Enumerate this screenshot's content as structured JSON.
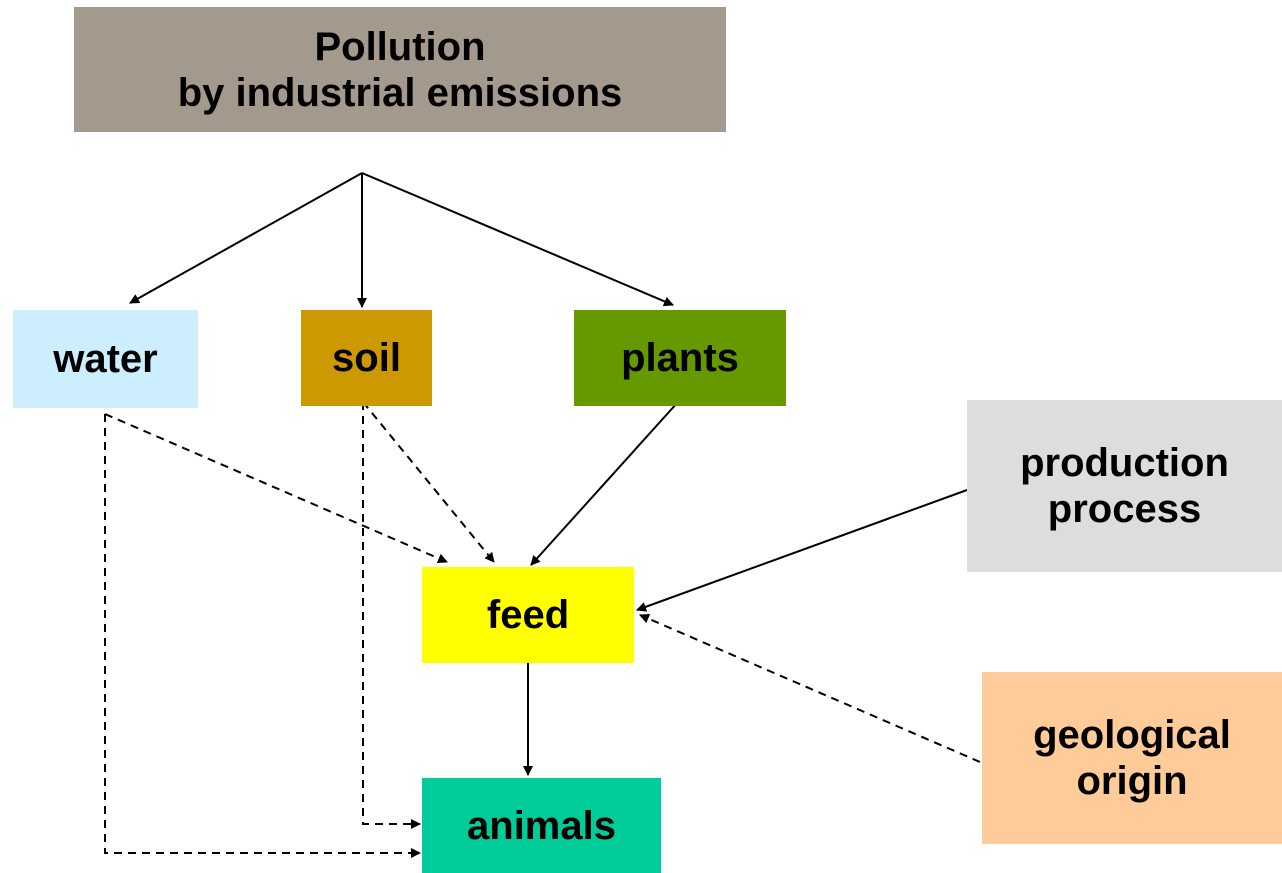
{
  "nodes": [
    {
      "label": "Pollution\nby industrial emissions"
    },
    {
      "label": "water"
    },
    {
      "label": "soil"
    },
    {
      "label": "plants"
    },
    {
      "label": "production\nprocess"
    },
    {
      "label": "feed"
    },
    {
      "label": "geological\norigin"
    },
    {
      "label": "animals"
    }
  ]
}
